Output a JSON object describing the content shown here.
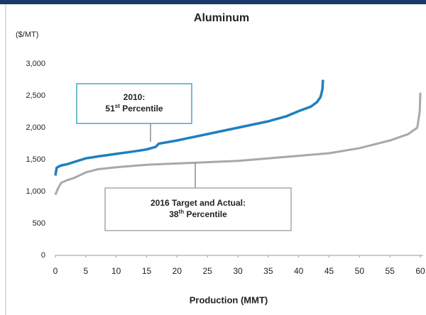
{
  "chart_data": {
    "type": "line",
    "title": "Aluminum",
    "y_label": "($/MT)",
    "x_label": "Production (MMT)",
    "series": [
      {
        "name": "2010",
        "color": "#1f7fbf",
        "x": [
          0,
          0.2,
          0.5,
          1,
          2,
          3,
          5,
          7,
          10,
          13,
          15,
          16.5,
          17,
          20,
          25,
          30,
          35,
          38,
          40,
          42,
          43,
          43.6,
          43.9,
          44
        ],
        "values": [
          1250,
          1370,
          1390,
          1410,
          1430,
          1460,
          1520,
          1550,
          1590,
          1630,
          1660,
          1700,
          1750,
          1800,
          1900,
          2000,
          2100,
          2180,
          2260,
          2330,
          2400,
          2480,
          2600,
          2750
        ]
      },
      {
        "name": "2016 Target and Actual",
        "color": "#a8a8a8",
        "x": [
          0,
          0.3,
          0.6,
          1,
          2,
          3,
          5,
          7,
          10,
          15,
          20,
          25,
          30,
          35,
          40,
          45,
          50,
          55,
          58,
          59.5,
          59.9,
          60
        ],
        "values": [
          950,
          1020,
          1080,
          1140,
          1180,
          1210,
          1300,
          1350,
          1380,
          1420,
          1440,
          1460,
          1480,
          1520,
          1560,
          1600,
          1680,
          1800,
          1900,
          2000,
          2250,
          2550
        ]
      }
    ],
    "annotations": [
      {
        "lines": [
          {
            "text": "2010:"
          },
          {
            "text": "51",
            "sup": "st",
            "rest": " Percentile"
          }
        ],
        "color": "#4aa3c3"
      },
      {
        "lines": [
          {
            "text": "2016 Target and Actual:"
          },
          {
            "text": "38",
            "sup": "th",
            "rest": " Percentile"
          }
        ],
        "color": "#a8a8a8"
      }
    ],
    "xlim": [
      0,
      60
    ],
    "xticks": [
      0,
      5,
      10,
      15,
      20,
      25,
      30,
      35,
      40,
      45,
      50,
      55,
      60
    ],
    "ylim": [
      0,
      3000
    ],
    "yticks": [
      0,
      500,
      {
        "value": 1000,
        "label": "1,000"
      },
      {
        "value": 1500,
        "label": "1,500"
      },
      {
        "value": 2000,
        "label": "2,000"
      },
      {
        "value": 2500,
        "label": "2,500"
      },
      {
        "value": 3000,
        "label": "3,000"
      }
    ],
    "grid": false
  }
}
